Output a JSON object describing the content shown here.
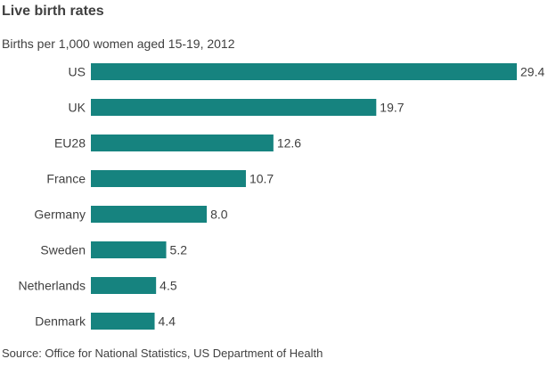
{
  "chart_data": {
    "type": "bar",
    "orientation": "horizontal",
    "title": "Live birth rates",
    "subtitle": "Births per 1,000 women aged 15-19, 2012",
    "categories": [
      "US",
      "UK",
      "EU28",
      "France",
      "Germany",
      "Sweden",
      "Netherlands",
      "Denmark"
    ],
    "values": [
      29.4,
      19.7,
      12.6,
      10.7,
      8.0,
      5.2,
      4.5,
      4.4
    ],
    "value_labels": [
      "29.4",
      "19.7",
      "12.6",
      "10.7",
      "8.0",
      "5.2",
      "4.5",
      "4.4"
    ],
    "xlim": [
      0,
      29.4
    ],
    "grid": false,
    "legend": "none",
    "bar_color": "#16837f",
    "source": "Source: Office for National Statistics, US Department of Health"
  }
}
